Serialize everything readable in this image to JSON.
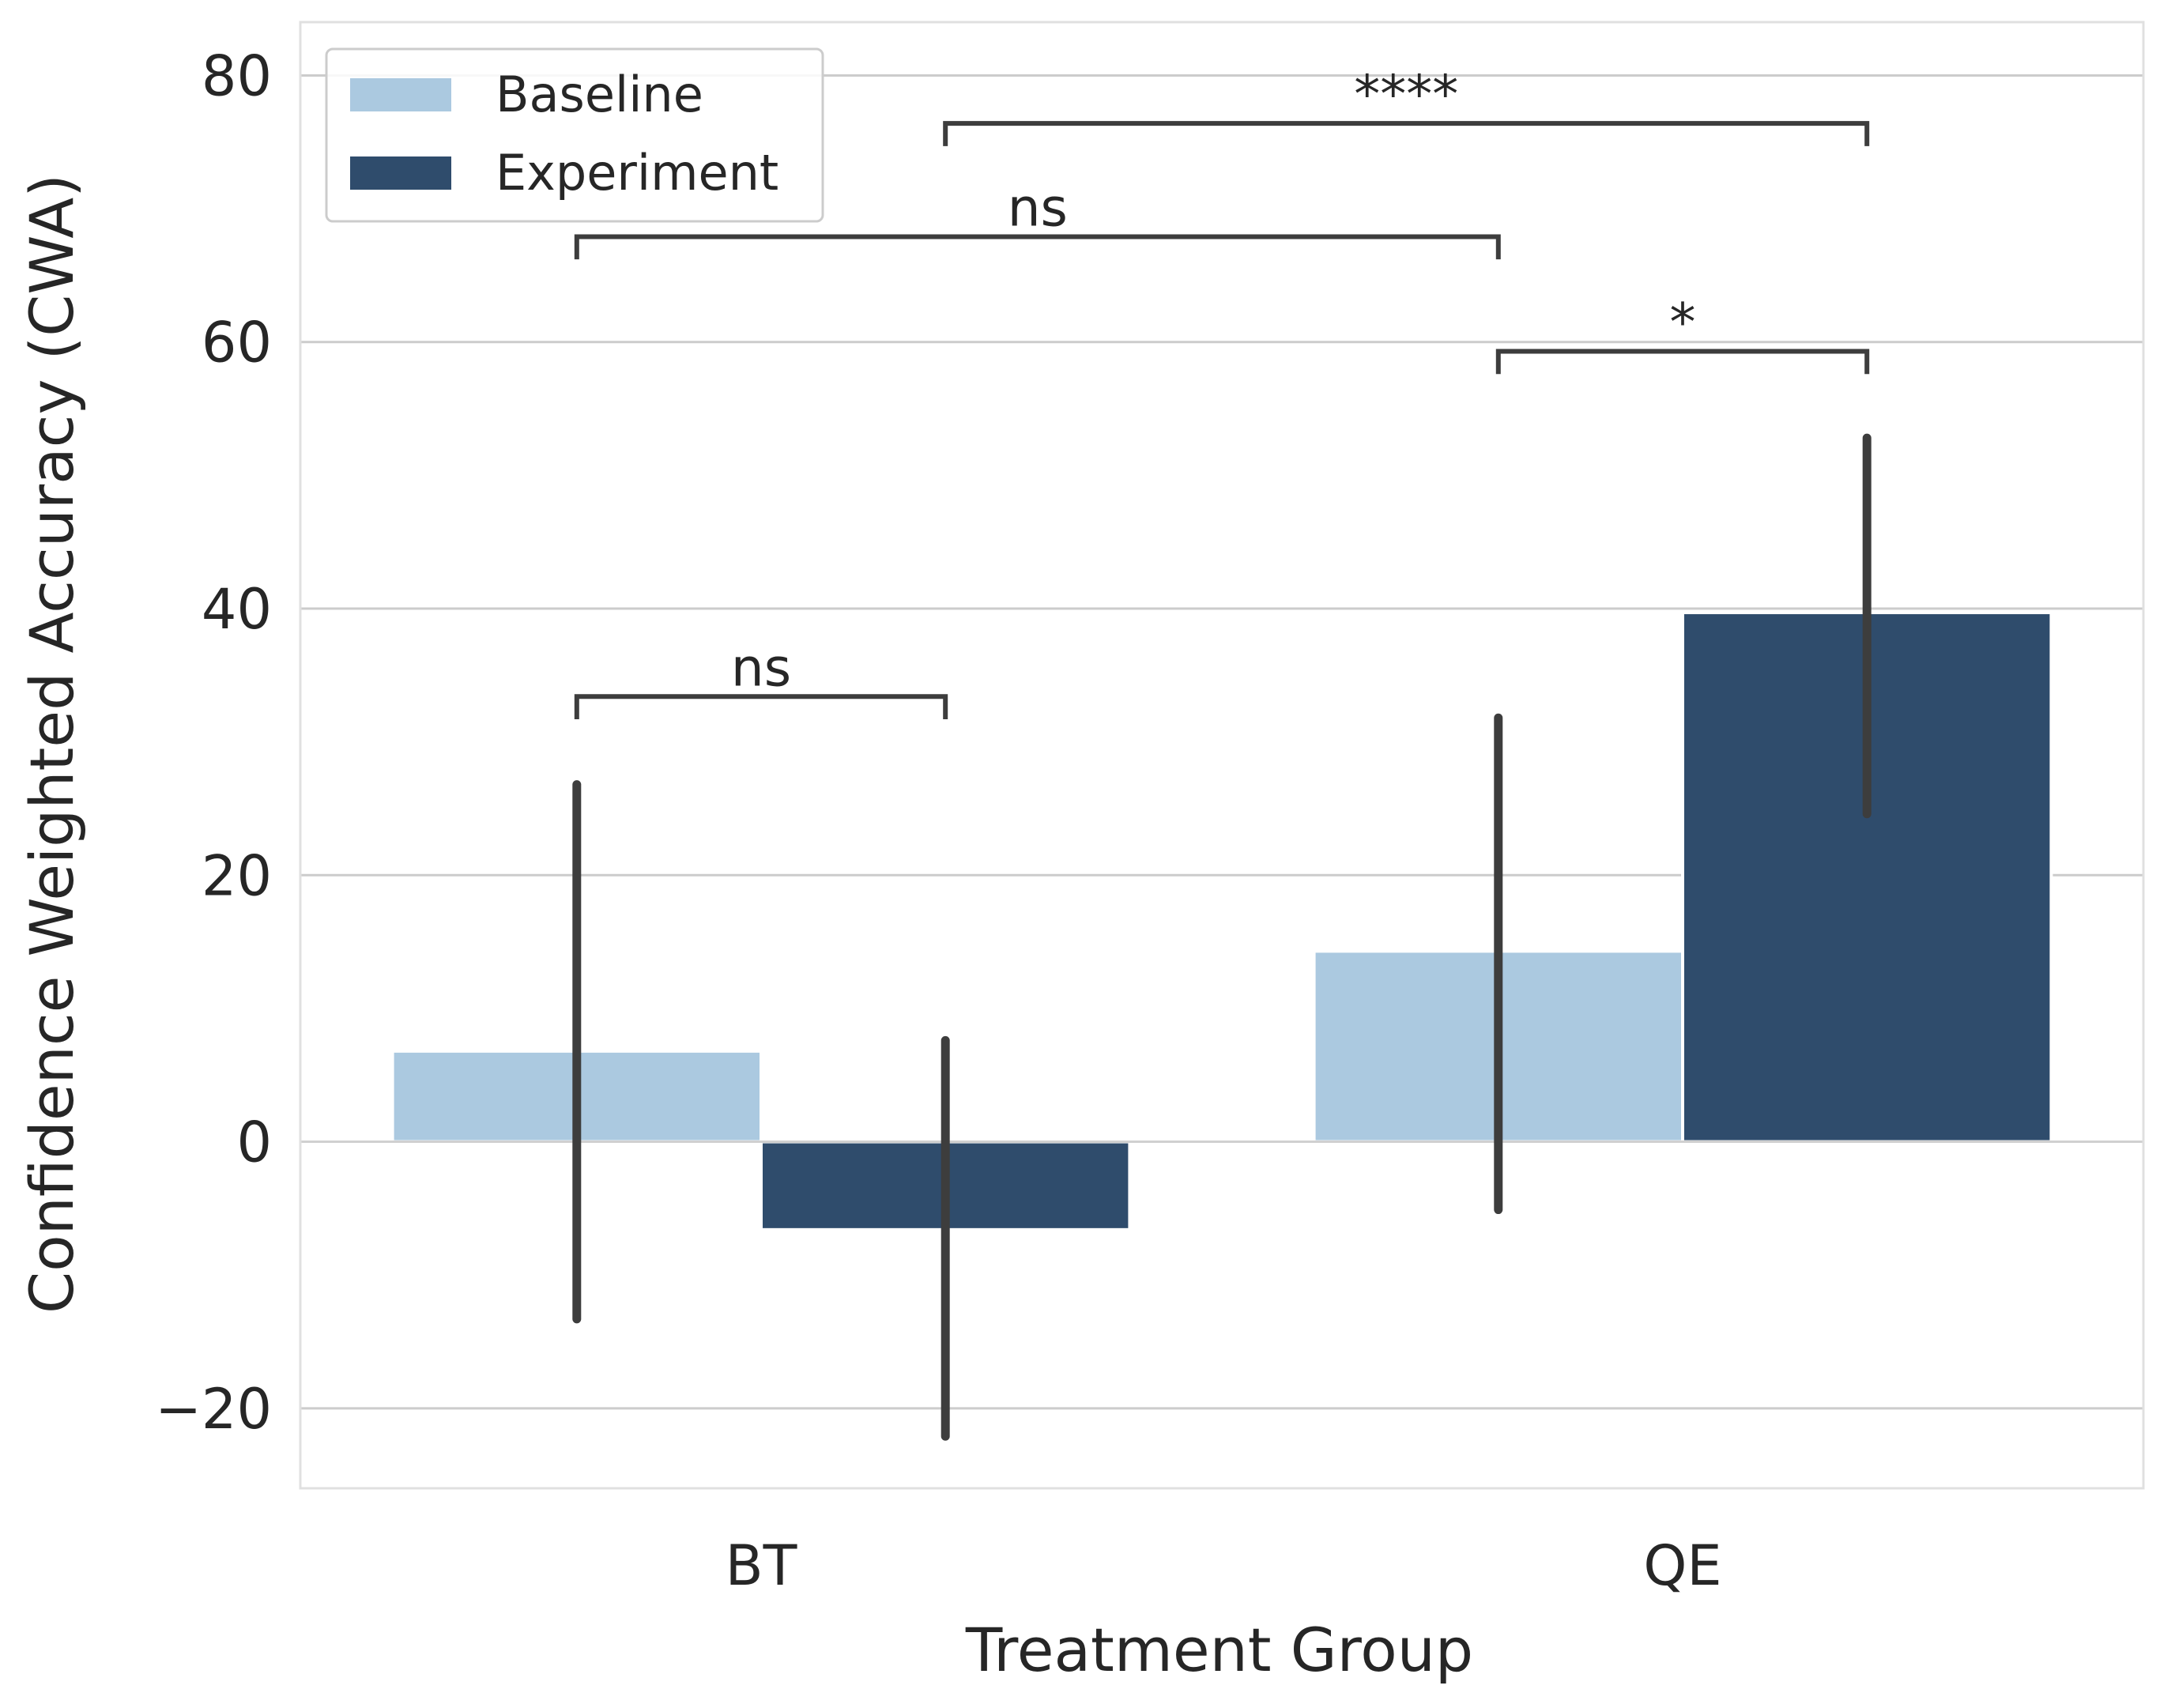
{
  "chart_data": {
    "type": "bar",
    "title": "",
    "xlabel": "Treatment Group",
    "ylabel": "Confidence Weighted Accuracy (CWA)",
    "categories": [
      "BT",
      "QE"
    ],
    "ylim": [
      -26,
      84
    ],
    "yticks": [
      80,
      60,
      40,
      20,
      0,
      -20
    ],
    "ytick_labels": [
      "80",
      "60",
      "40",
      "20",
      "0",
      "−20"
    ],
    "grid": true,
    "legend_position": "top-left",
    "series": [
      {
        "name": "Baseline",
        "color": "#abc9e0",
        "values": [
          6.8,
          14.3
        ],
        "ci_low": [
          -13.3,
          -5.1
        ],
        "ci_high": [
          26.8,
          31.8
        ]
      },
      {
        "name": "Experiment",
        "color": "#2f4c6c",
        "values": [
          -6.6,
          39.7
        ],
        "ci_low": [
          -22.1,
          24.6
        ],
        "ci_high": [
          7.6,
          52.8
        ]
      }
    ],
    "annotations": [
      {
        "label": "ns",
        "from": {
          "category": 0,
          "series": 0
        },
        "to": {
          "category": 0,
          "series": 1
        },
        "level": 33.4,
        "tick_to": 31.7
      },
      {
        "label": "ns",
        "from": {
          "category": 0,
          "series": 0
        },
        "to": {
          "category": 1,
          "series": 0
        },
        "level": 67.9,
        "tick_to": 66.2
      },
      {
        "label": "*",
        "from": {
          "category": 1,
          "series": 0
        },
        "to": {
          "category": 1,
          "series": 1
        },
        "level": 59.3,
        "tick_to": 57.6
      },
      {
        "label": "****",
        "from": {
          "category": 0,
          "series": 1
        },
        "to": {
          "category": 1,
          "series": 1
        },
        "level": 76.4,
        "tick_to": 74.7
      }
    ],
    "colors": {
      "grid": "#cccccc",
      "text": "#262626",
      "errorbar": "#3d3d3d",
      "frame": "#e0e0e0"
    }
  }
}
